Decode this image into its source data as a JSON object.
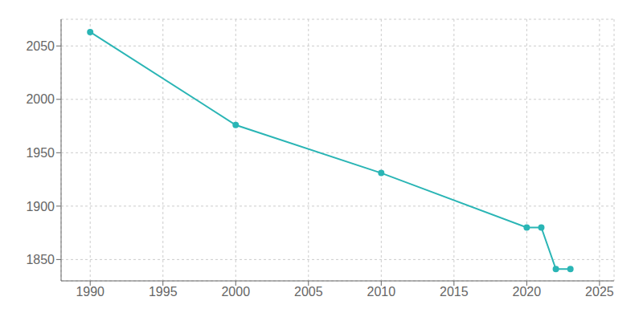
{
  "chart_data": {
    "type": "line",
    "x": [
      1990,
      2000,
      2010,
      2020,
      2021,
      2022,
      2023
    ],
    "values": [
      2063,
      1976,
      1931,
      1880,
      1880,
      1841,
      1841
    ],
    "color": "#2ab5b5",
    "marker": "circle",
    "xlim": [
      1988,
      2026
    ],
    "ylim": [
      1830,
      2075
    ],
    "xticks": [
      1990,
      1995,
      2000,
      2005,
      2010,
      2015,
      2020,
      2025
    ],
    "yticks": [
      1850,
      1900,
      1950,
      2000,
      2050
    ],
    "grid": true
  }
}
